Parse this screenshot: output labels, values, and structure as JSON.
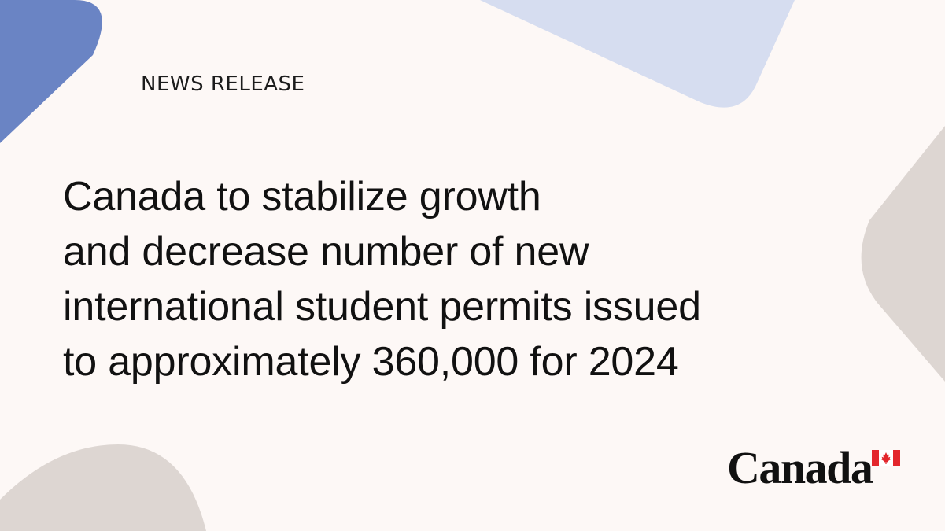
{
  "eyebrow": "NEWS RELEASE",
  "headline": {
    "lines": [
      "Canada to stabilize growth",
      "and decrease number of new",
      "international student permits issued",
      "to approximately 360,000 for 2024"
    ]
  },
  "wordmark": {
    "text": "Canada",
    "flag_icon": "canada-flag-icon"
  },
  "colors": {
    "background": "#fdf8f6",
    "blue": "#6a84c4",
    "light_blue": "#d6ddf0",
    "taupe": "#ddd6d2",
    "flag_red": "#e3262c",
    "text": "#111111"
  }
}
